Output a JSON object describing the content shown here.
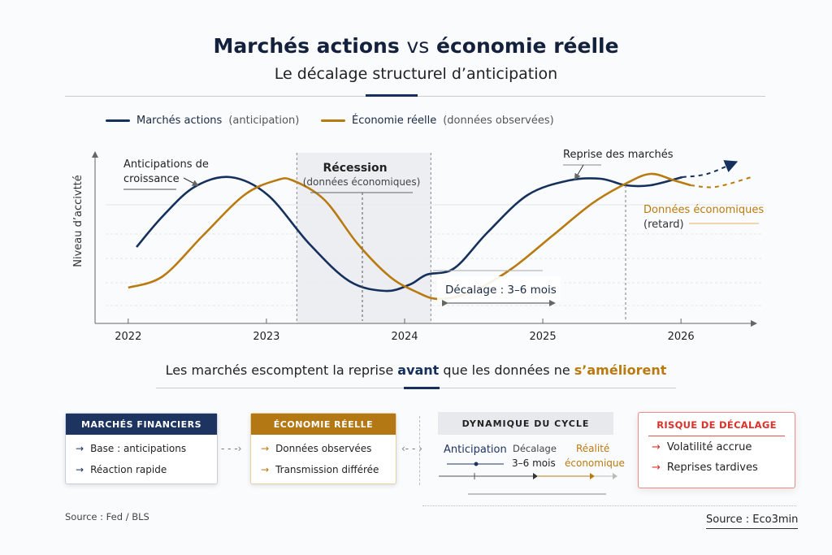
{
  "header": {
    "title_a": "Marchés actions",
    "title_vs": "vs",
    "title_b": "économie réelle",
    "subtitle": "Le décalage structurel d’anticipation"
  },
  "legend": [
    {
      "label": "Marchés actions",
      "note": "(anticipation)",
      "color": "#15305c"
    },
    {
      "label": "Économie réelle",
      "note": "(données observées)",
      "color": "#b97a0f"
    }
  ],
  "chart_data": {
    "type": "line",
    "ylabel": "Niveau d’accivtté",
    "xlim": [
      2021.76,
      2026.54
    ],
    "ylim": [
      0,
      100
    ],
    "grid": true,
    "xticks": [
      "2022",
      "2023",
      "2024",
      "2025",
      "2026"
    ],
    "series": [
      {
        "name": "Marchés actions",
        "color": "#15305c",
        "x": [
          2022.06,
          2022.25,
          2022.48,
          2022.74,
          2023.01,
          2023.31,
          2023.6,
          2023.86,
          2024.04,
          2024.16,
          2024.36,
          2024.6,
          2024.89,
          2025.19,
          2025.42,
          2025.6,
          2025.78,
          2026.01
        ],
        "y": [
          47,
          66,
          84,
          90,
          79,
          49,
          26,
          20,
          24,
          30,
          34,
          56,
          79,
          88,
          89,
          85,
          85,
          90
        ],
        "projection": {
          "x": [
            2026.01,
            2026.19,
            2026.39
          ],
          "y": [
            90,
            92,
            99
          ]
        }
      },
      {
        "name": "Économie réelle",
        "color": "#b97a0f",
        "x": [
          2022,
          2022.25,
          2022.54,
          2022.84,
          2023.07,
          2023.19,
          2023.42,
          2023.66,
          2023.89,
          2024.07,
          2024.25,
          2024.5,
          2024.78,
          2025.07,
          2025.36,
          2025.6,
          2025.78,
          2025.95,
          2026.07
        ],
        "y": [
          22,
          29,
          54,
          79,
          88,
          88,
          76,
          49,
          29,
          20,
          15,
          20,
          34,
          54,
          74,
          86,
          92,
          88,
          85
        ],
        "projection": {
          "x": [
            2026.07,
            2026.25,
            2026.51
          ],
          "y": [
            85,
            84,
            90
          ]
        }
      }
    ],
    "recession": {
      "from": 2023.22,
      "to": 2024.19,
      "label": "Récession",
      "sublabel": "(données économiques)"
    },
    "annotations": {
      "growth": "Anticipations de croissance",
      "growth_l1": "Anticipations de",
      "growth_l2": "croissance",
      "rebound": "Reprise des marchés",
      "lag": "Décalage : 3–6 mois",
      "data_l1": "Données économiques",
      "data_l2": "(retard)"
    }
  },
  "tagline": {
    "a": "Les marchés escomptent la reprise ",
    "b": "avant",
    "c": " que les données ne ",
    "d": "s’améliorent"
  },
  "boxes": {
    "fin": {
      "title": "MARCHÉS FINANCIERS",
      "items": [
        "Base : anticipations",
        "Réaction rapide"
      ]
    },
    "eco": {
      "title": "ÉCONOMIE RÉELLE",
      "items": [
        "Données observées",
        "Transmission différée"
      ]
    },
    "cycle": {
      "title": "DYNAMIQUE DU CYCLE",
      "a": "Anticipation",
      "b1": "Décalage",
      "b2": "3–6 mois",
      "c1": "Réalité",
      "c2": "économique"
    },
    "risk": {
      "title": "RISQUE DE DÉCALAGE",
      "items": [
        "Volatilité accrue",
        "Reprises tardives"
      ]
    }
  },
  "footer": {
    "left": "Source : Fed / BLS",
    "right": "Source : Eco3min"
  }
}
